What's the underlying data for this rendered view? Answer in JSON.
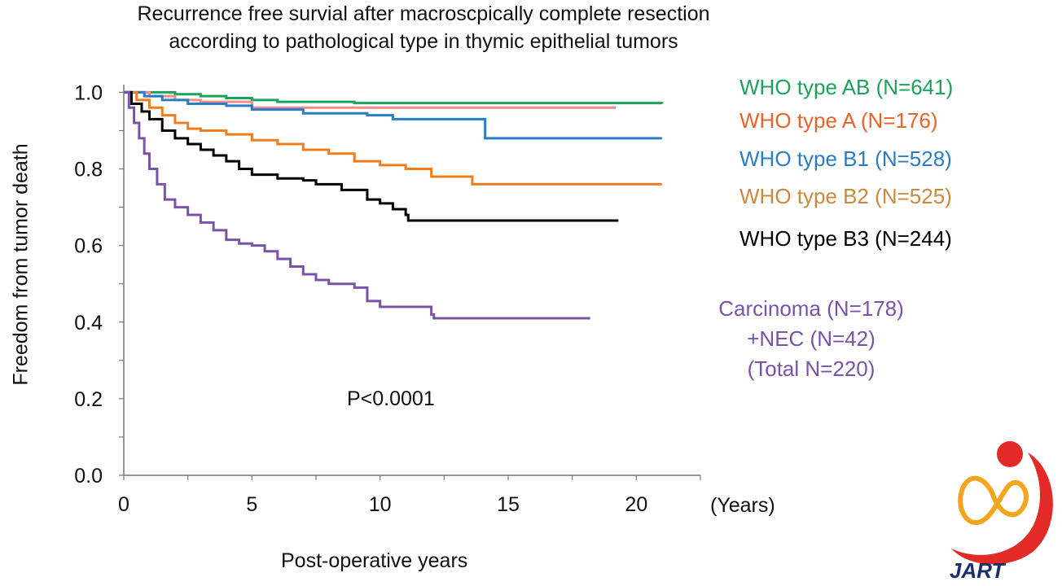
{
  "chart_data": {
    "type": "line",
    "title_lines": [
      "Recurrence free survial after macroscpically complete resection",
      "according to pathological type in thymic epithelial tumors"
    ],
    "xlabel": "Post-operative years",
    "x_unit": "(Years)",
    "ylabel": "Freedom from tumor death",
    "xlim": [
      0,
      22.5
    ],
    "ylim": [
      0,
      1.02
    ],
    "x_ticks": [
      0,
      5,
      10,
      15,
      20
    ],
    "y_ticks": [
      0.0,
      0.2,
      0.4,
      0.6,
      0.8,
      1.0
    ],
    "x_tick_labels": [
      "0",
      "5",
      "10",
      "15",
      "20"
    ],
    "y_tick_labels": [
      "0.0",
      "0.2",
      "0.4",
      "0.6",
      "0.8",
      "1.0"
    ],
    "annotation": "P<0.0001",
    "grid": false,
    "legend_position": "right",
    "series": [
      {
        "name": "WHO type AB (N=641)",
        "color": "#1aa35a",
        "x": [
          0,
          1,
          2,
          3,
          4,
          5,
          6,
          9,
          21
        ],
        "y": [
          1.0,
          1.0,
          0.995,
          0.99,
          0.985,
          0.98,
          0.975,
          0.972,
          0.97
        ]
      },
      {
        "name": "WHO type A (N=176)",
        "color": "#f38a8a",
        "x": [
          0,
          1,
          2,
          3,
          5,
          19.2
        ],
        "y": [
          1.0,
          0.99,
          0.98,
          0.975,
          0.96,
          0.96
        ]
      },
      {
        "name": "WHO type B1 (N=528)",
        "color": "#2a7dc4",
        "x": [
          0,
          0.8,
          1.5,
          2.5,
          4,
          5,
          7,
          9.5,
          10.5,
          14,
          14.1,
          21
        ],
        "y": [
          1.0,
          0.99,
          0.98,
          0.97,
          0.965,
          0.955,
          0.945,
          0.94,
          0.93,
          0.93,
          0.88,
          0.88
        ]
      },
      {
        "name": "WHO type B2 (N=525)",
        "color": "#f07d1d",
        "x": [
          0,
          0.5,
          1,
          1.5,
          2,
          2.5,
          3,
          4,
          5,
          6,
          7,
          8,
          9,
          10,
          11,
          12,
          13.5,
          13.6,
          21
        ],
        "y": [
          1.0,
          0.98,
          0.96,
          0.94,
          0.92,
          0.905,
          0.9,
          0.89,
          0.875,
          0.865,
          0.85,
          0.84,
          0.82,
          0.81,
          0.8,
          0.78,
          0.78,
          0.76,
          0.76
        ]
      },
      {
        "name": "WHO type B3 (N=244)",
        "color": "#000000",
        "x": [
          0,
          0.3,
          0.7,
          1,
          1.5,
          2,
          2.5,
          3,
          3.5,
          4,
          4.5,
          5,
          6,
          7,
          7.5,
          8.5,
          9.5,
          10,
          10.5,
          11,
          11.1,
          19.3
        ],
        "y": [
          1.0,
          0.97,
          0.95,
          0.93,
          0.9,
          0.88,
          0.865,
          0.85,
          0.835,
          0.82,
          0.8,
          0.785,
          0.775,
          0.77,
          0.76,
          0.745,
          0.72,
          0.71,
          0.695,
          0.68,
          0.665,
          0.665
        ]
      },
      {
        "name": "Carcinoma (N=178)",
        "color": "#7a53a8",
        "x": [
          0,
          0.2,
          0.4,
          0.6,
          0.8,
          1,
          1.3,
          1.6,
          2,
          2.5,
          3,
          3.5,
          4,
          4.5,
          5,
          5.5,
          6,
          6.5,
          7,
          7.5,
          8,
          9,
          9.5,
          10,
          11,
          12,
          12.1,
          18.2
        ],
        "y": [
          1.0,
          0.96,
          0.92,
          0.88,
          0.84,
          0.8,
          0.76,
          0.72,
          0.7,
          0.68,
          0.66,
          0.64,
          0.615,
          0.605,
          0.6,
          0.585,
          0.565,
          0.545,
          0.525,
          0.51,
          0.5,
          0.49,
          0.455,
          0.44,
          0.44,
          0.42,
          0.41,
          0.41
        ]
      }
    ],
    "legend_extra_lines": [
      "+NEC (N=42)",
      "(Total N=220)"
    ]
  },
  "logo": {
    "text": "JART",
    "colors": {
      "red": "#e22a26",
      "gold": "#f2a51d",
      "navy": "#1c2e6a"
    }
  }
}
